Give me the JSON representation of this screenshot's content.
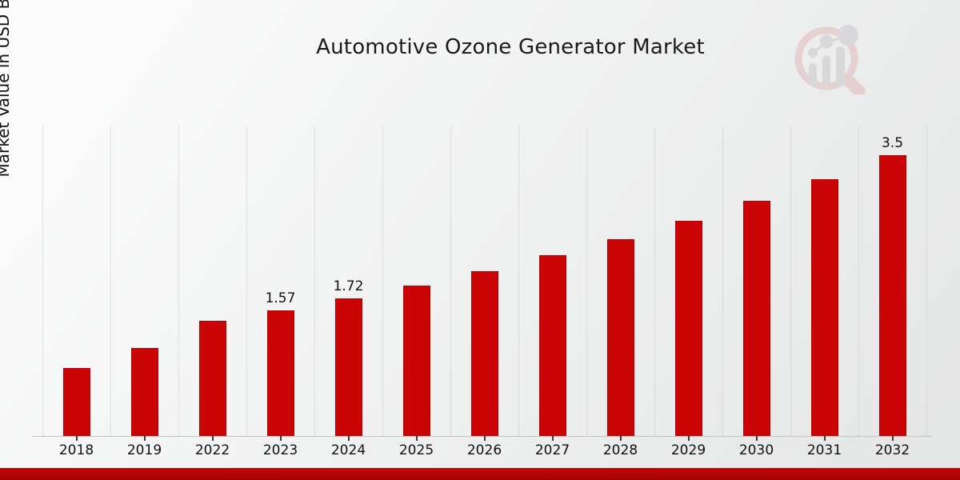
{
  "page": {
    "title": "Automotive Ozone Generator Market",
    "y_axis_label": "Market Value in USD Billion",
    "watermark_icon": "magnifier-growth-chart-logo",
    "colors": {
      "bar": "#cb0505",
      "bottom_band": "#b80404",
      "background_start": "#fdfdfd",
      "background_end": "#e4e5e5",
      "gridline": "#c7c8c8",
      "text": "#111111"
    }
  },
  "chart_data": {
    "type": "bar",
    "title": "Automotive Ozone Generator Market",
    "xlabel": "",
    "ylabel": "Market Value in USD Billion",
    "categories": [
      "2018",
      "2019",
      "2022",
      "2023",
      "2024",
      "2025",
      "2026",
      "2027",
      "2028",
      "2029",
      "2030",
      "2031",
      "2032"
    ],
    "values": [
      0.85,
      1.1,
      1.44,
      1.57,
      1.72,
      1.88,
      2.05,
      2.25,
      2.45,
      2.68,
      2.93,
      3.2,
      3.5
    ],
    "data_labels": [
      "",
      "",
      "",
      "1.57",
      "1.72",
      "",
      "",
      "",
      "",
      "",
      "",
      "",
      "3.5"
    ],
    "ylim": [
      0,
      3.86
    ],
    "grid": "vertical-dotted-category-boundaries",
    "legend": "none",
    "bar_color": "#cb0505",
    "units": "USD Billion"
  }
}
